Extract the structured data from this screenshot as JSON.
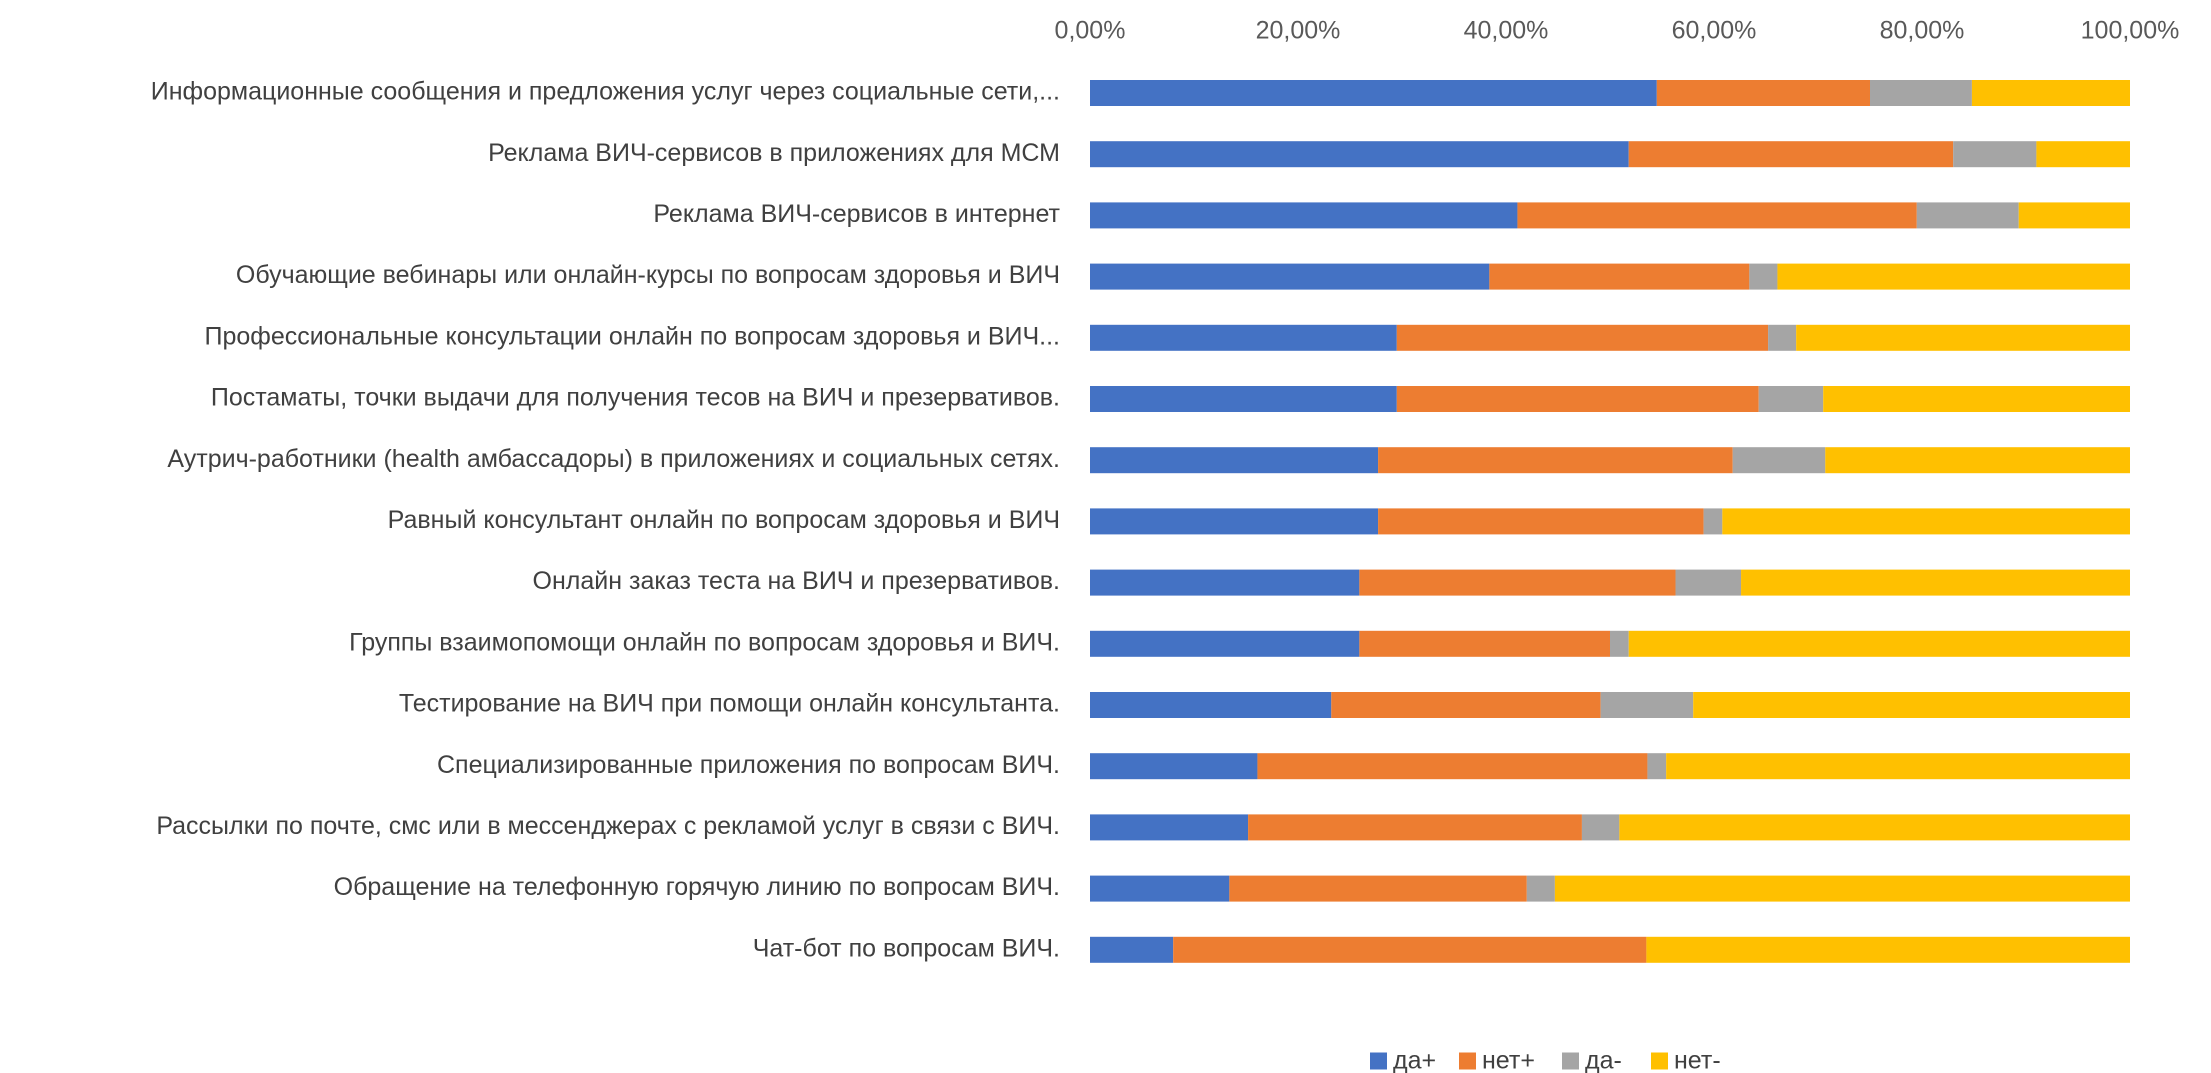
{
  "chart_data": {
    "type": "bar",
    "orientation": "horizontal",
    "stacked": "percent",
    "title": "",
    "xlabel": "",
    "ylabel": "",
    "xlim": [
      0,
      100
    ],
    "x_ticks": [
      "0,00%",
      "20,00%",
      "40,00%",
      "60,00%",
      "80,00%",
      "100,00%"
    ],
    "x_axis_position": "top",
    "grid": false,
    "legend_position": "bottom",
    "categories": [
      "Информационные сообщения и предложения услуг через социальные сети,...",
      "Реклама ВИЧ-сервисов в приложениях для МСМ",
      "Реклама ВИЧ-сервисов в интернет",
      "Обучающие вебинары или онлайн-курсы по вопросам здоровья и ВИЧ",
      "Профессиональные консультации онлайн по вопросам здоровья и ВИЧ...",
      "Постаматы, точки выдачи для получения тесов на ВИЧ и  презервативов.",
      "Аутрич-работники (health амбассадоры) в приложениях и социальных сетях.",
      "Равный консультант онлайн по вопросам здоровья и ВИЧ",
      "Онлайн заказ теста на ВИЧ и презервативов.",
      "Группы взаимопомощи онлайн по вопросам здоровья и ВИЧ.",
      "Тестирование на ВИЧ при помощи онлайн консультанта.",
      "Специализированные приложения по вопросам ВИЧ.",
      "Рассылки по почте, смс или в мессенджерах с рекламой услуг в связи с ВИЧ.",
      "Обращение на телефонную горячую линию по вопросам ВИЧ.",
      "Чат-бот по вопросам ВИЧ."
    ],
    "series": [
      {
        "name": "да+",
        "color": "#4472C4",
        "values": [
          54.5,
          51.8,
          41.1,
          38.4,
          29.5,
          29.5,
          27.7,
          27.7,
          25.9,
          25.9,
          23.2,
          16.1,
          15.2,
          13.4,
          8.0
        ]
      },
      {
        "name": "нет+",
        "color": "#ED7D31",
        "values": [
          20.5,
          31.2,
          38.4,
          25.0,
          35.7,
          34.8,
          34.1,
          31.3,
          30.4,
          24.1,
          25.9,
          37.5,
          32.1,
          28.6,
          45.5
        ]
      },
      {
        "name": "да-",
        "color": "#A5A5A5",
        "values": [
          9.8,
          8.0,
          9.8,
          2.7,
          2.7,
          6.2,
          8.9,
          1.8,
          6.3,
          1.8,
          8.9,
          1.8,
          3.6,
          2.7,
          0.0
        ]
      },
      {
        "name": "нет-",
        "color": "#FFC000",
        "values": [
          15.2,
          9.0,
          10.7,
          33.9,
          32.1,
          29.5,
          29.3,
          39.2,
          37.4,
          48.2,
          42.0,
          44.6,
          49.1,
          55.3,
          46.5
        ]
      }
    ]
  }
}
